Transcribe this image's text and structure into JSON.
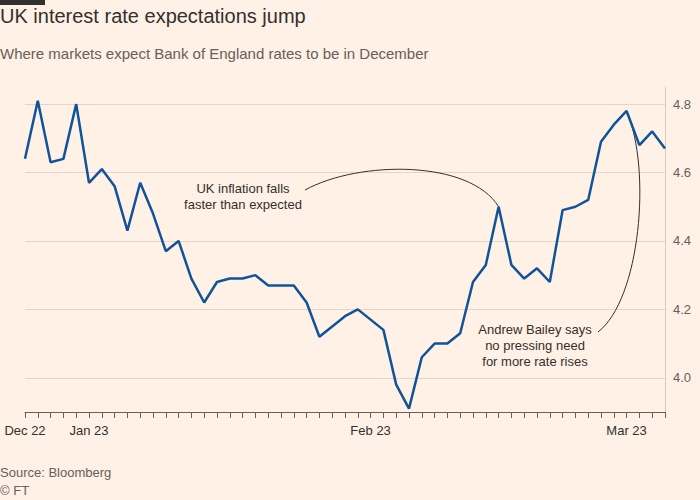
{
  "chart_data": {
    "type": "line",
    "title": "UK interest rate expectations jump",
    "subtitle": "Where markets expect Bank of England rates to be in December",
    "source": "Source: Bloomberg",
    "credit": "© FT",
    "color": "#0f5499",
    "categories": [
      "Dec 22",
      null,
      null,
      null,
      null,
      "Jan 23",
      null,
      null,
      null,
      null,
      null,
      null,
      null,
      null,
      null,
      null,
      null,
      null,
      null,
      null,
      null,
      null,
      null,
      null,
      null,
      null,
      null,
      "Feb 23",
      null,
      null,
      null,
      null,
      null,
      null,
      null,
      null,
      null,
      null,
      null,
      null,
      null,
      null,
      null,
      null,
      null,
      null,
      null,
      "Mar 23",
      null,
      null,
      null
    ],
    "values": [
      4.64,
      4.81,
      4.63,
      4.64,
      4.8,
      4.57,
      4.61,
      4.56,
      4.43,
      4.57,
      4.48,
      4.37,
      4.4,
      4.29,
      4.22,
      4.28,
      4.29,
      4.29,
      4.3,
      4.27,
      4.27,
      4.27,
      4.22,
      4.12,
      4.15,
      4.18,
      4.2,
      4.17,
      4.14,
      3.98,
      3.91,
      4.06,
      4.1,
      4.1,
      4.13,
      4.28,
      4.33,
      4.5,
      4.33,
      4.29,
      4.32,
      4.28,
      4.49,
      4.5,
      4.52,
      4.69,
      4.74,
      4.78,
      4.68,
      4.72,
      4.67
    ],
    "ylim": [
      3.9,
      4.85
    ],
    "yticks": [
      {
        "value": 4,
        "label": "4.0"
      },
      4.2,
      4.4,
      4.6,
      4.8
    ],
    "grid": true,
    "annotations": [
      {
        "text": "UK inflation falls\nfaster than expected"
      },
      {
        "text": "Andrew Bailey says\nno pressing need\nfor more rate rises"
      }
    ]
  }
}
